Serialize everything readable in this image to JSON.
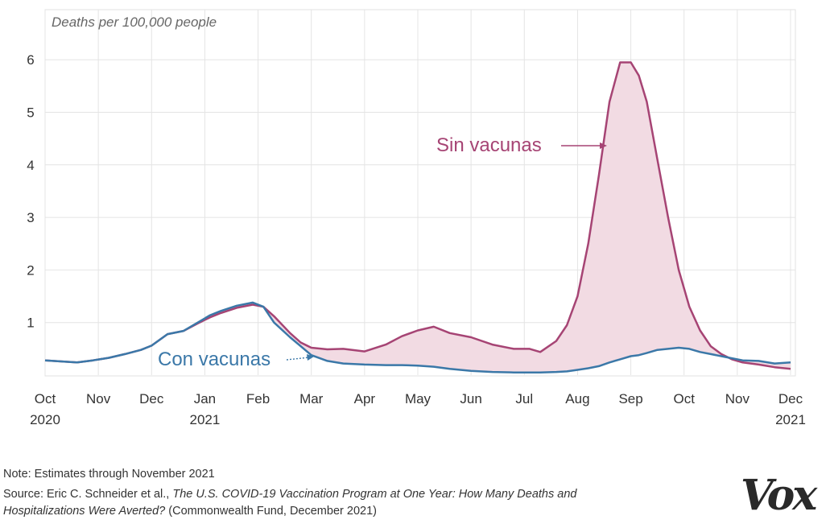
{
  "chart_data": {
    "type": "area",
    "ylabel": "Deaths per 100,000 people",
    "yticks": [
      1,
      2,
      3,
      4,
      5,
      6
    ],
    "ylim": [
      0,
      6.5
    ],
    "grid": true,
    "x_ticks": [
      {
        "month": "Oct",
        "year": "2020",
        "t": 0
      },
      {
        "month": "Nov",
        "year": "",
        "t": 1
      },
      {
        "month": "Dec",
        "year": "",
        "t": 2
      },
      {
        "month": "Jan",
        "year": "2021",
        "t": 3
      },
      {
        "month": "Feb",
        "year": "",
        "t": 4
      },
      {
        "month": "Mar",
        "year": "",
        "t": 5
      },
      {
        "month": "Apr",
        "year": "",
        "t": 6
      },
      {
        "month": "May",
        "year": "",
        "t": 7
      },
      {
        "month": "Jun",
        "year": "",
        "t": 8
      },
      {
        "month": "Jul",
        "year": "",
        "t": 9
      },
      {
        "month": "Aug",
        "year": "",
        "t": 10
      },
      {
        "month": "Sep",
        "year": "",
        "t": 11
      },
      {
        "month": "Oct",
        "year": "",
        "t": 12
      },
      {
        "month": "Nov",
        "year": "",
        "t": 13
      },
      {
        "month": "Dec",
        "year": "2021",
        "t": 14
      }
    ],
    "series": [
      {
        "name": "Sin vacunas",
        "color": "#a64474",
        "x": [
          0,
          0.3,
          0.6,
          0.9,
          1.2,
          1.5,
          1.8,
          2.0,
          2.3,
          2.6,
          2.9,
          3.1,
          3.3,
          3.6,
          3.9,
          4.1,
          4.3,
          4.6,
          4.8,
          5.0,
          5.3,
          5.6,
          6.0,
          6.4,
          6.7,
          7.0,
          7.3,
          7.6,
          8.0,
          8.4,
          8.8,
          9.1,
          9.3,
          9.6,
          9.8,
          10.0,
          10.2,
          10.4,
          10.6,
          10.8,
          11.0,
          11.15,
          11.3,
          11.5,
          11.7,
          11.9,
          12.1,
          12.3,
          12.5,
          12.7,
          12.9,
          13.1,
          13.4,
          13.7,
          14.0
        ],
        "y": [
          0.28,
          0.26,
          0.24,
          0.28,
          0.33,
          0.4,
          0.48,
          0.56,
          0.78,
          0.84,
          1.0,
          1.1,
          1.18,
          1.28,
          1.34,
          1.3,
          1.12,
          0.8,
          0.62,
          0.52,
          0.49,
          0.5,
          0.45,
          0.58,
          0.74,
          0.85,
          0.92,
          0.8,
          0.72,
          0.58,
          0.5,
          0.5,
          0.44,
          0.65,
          0.95,
          1.5,
          2.5,
          3.8,
          5.2,
          5.95,
          5.95,
          5.7,
          5.2,
          4.1,
          3.0,
          2.0,
          1.3,
          0.85,
          0.55,
          0.4,
          0.3,
          0.24,
          0.2,
          0.15,
          0.12
        ]
      },
      {
        "name": "Con vacunas",
        "color": "#3b78a8",
        "x": [
          0,
          0.3,
          0.6,
          0.9,
          1.2,
          1.5,
          1.8,
          2.0,
          2.3,
          2.6,
          2.9,
          3.1,
          3.3,
          3.6,
          3.9,
          4.1,
          4.3,
          4.6,
          4.8,
          5.0,
          5.3,
          5.6,
          6.0,
          6.4,
          6.7,
          7.0,
          7.3,
          7.6,
          8.0,
          8.4,
          8.8,
          9.1,
          9.3,
          9.6,
          9.8,
          10.0,
          10.2,
          10.4,
          10.6,
          10.8,
          11.0,
          11.15,
          11.3,
          11.5,
          11.7,
          11.9,
          12.1,
          12.3,
          12.5,
          12.7,
          12.9,
          13.1,
          13.4,
          13.7,
          14.0
        ],
        "y": [
          0.28,
          0.26,
          0.24,
          0.28,
          0.33,
          0.4,
          0.48,
          0.56,
          0.78,
          0.84,
          1.02,
          1.14,
          1.22,
          1.32,
          1.38,
          1.3,
          1.0,
          0.72,
          0.55,
          0.38,
          0.27,
          0.22,
          0.2,
          0.19,
          0.19,
          0.18,
          0.16,
          0.12,
          0.08,
          0.06,
          0.05,
          0.05,
          0.05,
          0.06,
          0.07,
          0.1,
          0.13,
          0.17,
          0.24,
          0.3,
          0.36,
          0.38,
          0.42,
          0.48,
          0.5,
          0.52,
          0.5,
          0.44,
          0.4,
          0.36,
          0.32,
          0.28,
          0.27,
          0.22,
          0.24
        ]
      }
    ],
    "annotations": [
      {
        "text": "Sin vacunas",
        "series": "Sin vacunas"
      },
      {
        "text": "Con vacunas",
        "series": "Con vacunas"
      }
    ]
  },
  "footer": {
    "note": "Note: Estimates through November 2021",
    "source_prefix": "Source: Eric C. Schneider et al., ",
    "source_title": "The U.S. COVID-19 Vaccination Program at One Year: How Many Deaths and Hospitalizations Were Averted?",
    "source_suffix": " (Commonwealth Fund, December 2021)"
  },
  "logo": {
    "text": "Vox",
    "icon": "vox-logo"
  },
  "colors": {
    "gap_fill": "#f2dbe3",
    "grid": "#e4e4e4",
    "sin": "#a64474",
    "con": "#3b78a8"
  }
}
